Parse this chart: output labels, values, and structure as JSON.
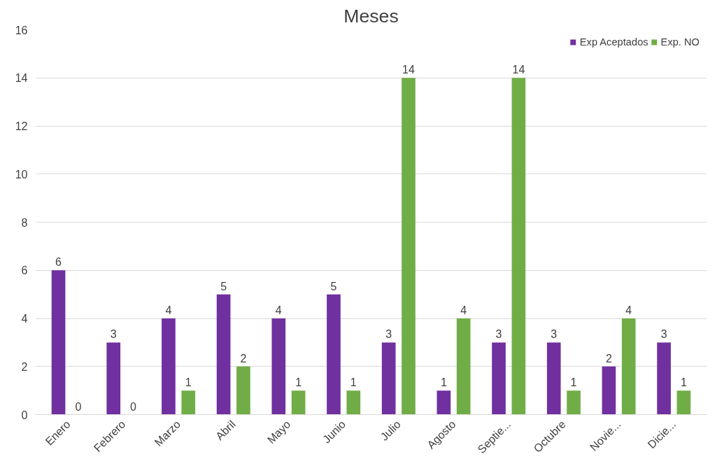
{
  "chart_data": {
    "type": "bar",
    "title": "Meses",
    "categories": [
      "Enero",
      "Febrero",
      "Marzo",
      "Abril",
      "Mayo",
      "Junio",
      "Julio",
      "Agosto",
      "Septie...",
      "Octubre",
      "Novie...",
      "Dicie..."
    ],
    "series": [
      {
        "name": "Exp Aceptados",
        "color": "#7030a0",
        "values": [
          6,
          3,
          4,
          5,
          4,
          5,
          3,
          1,
          3,
          3,
          2,
          3
        ]
      },
      {
        "name": "Exp. NO",
        "color": "#70ad47",
        "values": [
          0,
          0,
          1,
          2,
          1,
          1,
          14,
          4,
          14,
          1,
          4,
          1
        ]
      }
    ],
    "ylim": [
      0,
      16
    ],
    "yticks": [
      0,
      2,
      4,
      6,
      8,
      10,
      12,
      14,
      16
    ],
    "grid": "y",
    "legend": "top right",
    "data_labels": true
  }
}
